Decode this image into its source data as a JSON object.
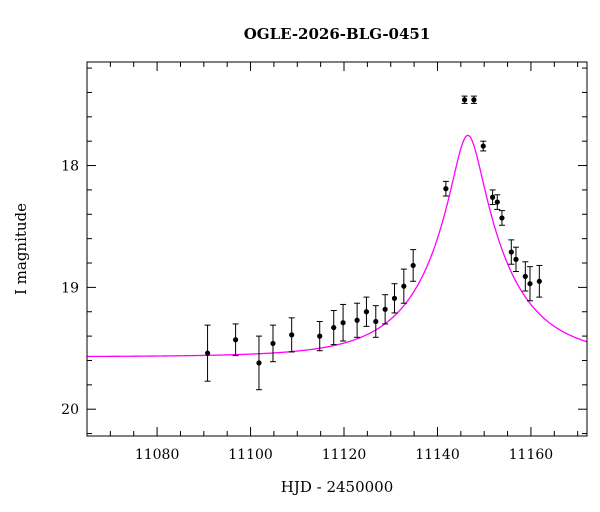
{
  "chart_data": {
    "type": "scatter",
    "title": "OGLE-2026-BLG-0451",
    "xlabel": "HJD - 2450000",
    "ylabel": "I magnitude",
    "xlim": [
      11065,
      11172
    ],
    "ylim": [
      20.22,
      17.15
    ],
    "y_inverted": true,
    "x_ticks": [
      11080,
      11100,
      11120,
      11140,
      11160
    ],
    "y_ticks": [
      18,
      19,
      20
    ],
    "grid": false,
    "model_color": "#ff00ff",
    "point_color": "#000000",
    "model": {
      "baseline_mag": 19.57,
      "t0": 11146.5,
      "u0": 0.19,
      "tE": 16.5
    },
    "series": [
      {
        "points": [
          {
            "x": 11090.8,
            "y": 19.54,
            "err": 0.23
          },
          {
            "x": 11096.8,
            "y": 19.43,
            "err": 0.13
          },
          {
            "x": 11101.8,
            "y": 19.62,
            "err": 0.22
          },
          {
            "x": 11104.8,
            "y": 19.46,
            "err": 0.15
          },
          {
            "x": 11108.8,
            "y": 19.39,
            "err": 0.14
          },
          {
            "x": 11114.8,
            "y": 19.4,
            "err": 0.12
          },
          {
            "x": 11117.8,
            "y": 19.33,
            "err": 0.14
          },
          {
            "x": 11119.8,
            "y": 19.29,
            "err": 0.15
          },
          {
            "x": 11122.8,
            "y": 19.27,
            "err": 0.14
          },
          {
            "x": 11124.8,
            "y": 19.2,
            "err": 0.12
          },
          {
            "x": 11126.8,
            "y": 19.28,
            "err": 0.13
          },
          {
            "x": 11128.8,
            "y": 19.18,
            "err": 0.12
          },
          {
            "x": 11130.8,
            "y": 19.09,
            "err": 0.12
          },
          {
            "x": 11132.8,
            "y": 18.99,
            "err": 0.14
          },
          {
            "x": 11134.8,
            "y": 18.82,
            "err": 0.13
          },
          {
            "x": 11141.8,
            "y": 18.19,
            "err": 0.06
          },
          {
            "x": 11145.8,
            "y": 17.46,
            "err": 0.03
          },
          {
            "x": 11147.8,
            "y": 17.46,
            "err": 0.03
          },
          {
            "x": 11149.8,
            "y": 17.84,
            "err": 0.04
          },
          {
            "x": 11151.8,
            "y": 18.26,
            "err": 0.06
          },
          {
            "x": 11152.8,
            "y": 18.3,
            "err": 0.06
          },
          {
            "x": 11153.8,
            "y": 18.43,
            "err": 0.06
          },
          {
            "x": 11155.8,
            "y": 18.71,
            "err": 0.1
          },
          {
            "x": 11156.8,
            "y": 18.77,
            "err": 0.1
          },
          {
            "x": 11158.8,
            "y": 18.91,
            "err": 0.12
          },
          {
            "x": 11159.8,
            "y": 18.97,
            "err": 0.14
          },
          {
            "x": 11161.8,
            "y": 18.95,
            "err": 0.13
          }
        ]
      }
    ]
  }
}
